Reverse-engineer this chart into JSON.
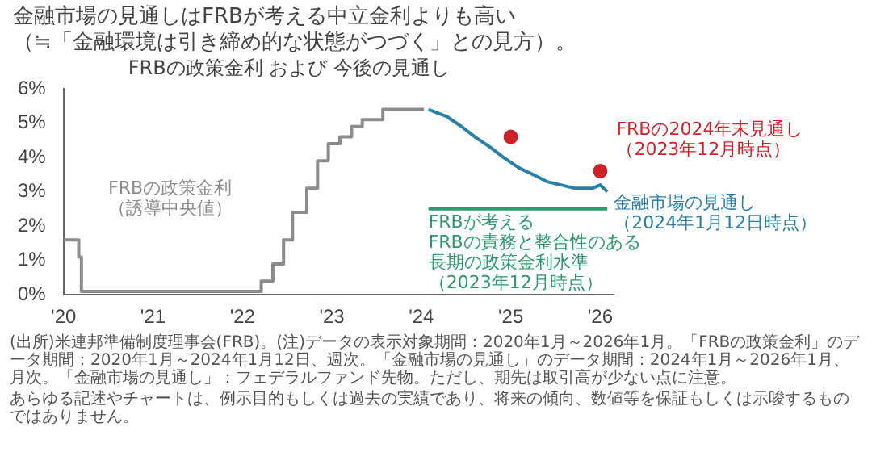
{
  "chart_data": {
    "type": "step",
    "title": "金融市場の見通しはFRBが考える中立金利よりも高い（≒「金融環境は引き締め的な状態がつづく」との見方）。",
    "subtitle": "FRBの政策金利 および 今後の見通し",
    "xlim": [
      2020,
      2026.15
    ],
    "xticks": [
      {
        "value": 2020,
        "label": "'20"
      },
      {
        "value": 2021,
        "label": "'21"
      },
      {
        "value": 2022,
        "label": "'22"
      },
      {
        "value": 2023,
        "label": "'23"
      },
      {
        "value": 2024,
        "label": "'24"
      },
      {
        "value": 2025,
        "label": "'25"
      },
      {
        "value": 2026,
        "label": "'26"
      }
    ],
    "ylim": [
      0,
      6
    ],
    "yticks": [
      {
        "value": 0,
        "label": "0%"
      },
      {
        "value": 1,
        "label": "1%"
      },
      {
        "value": 2,
        "label": "2%"
      },
      {
        "value": 3,
        "label": "3%"
      },
      {
        "value": 4,
        "label": "4%"
      },
      {
        "value": 5,
        "label": "5%"
      },
      {
        "value": 6,
        "label": "6%"
      }
    ],
    "grid": false,
    "legend": false,
    "series": [
      {
        "name": "FRBの政策金利（誘導中央値）",
        "color": "#8c8c8c",
        "x": [
          2020.0,
          2020.17,
          2020.2,
          2022.21,
          2022.34,
          2022.46,
          2022.56,
          2022.72,
          2022.84,
          2022.96,
          2023.09,
          2023.22,
          2023.34,
          2023.57,
          2024.03
        ],
        "values": [
          1.6,
          1.1,
          0.1,
          0.4,
          0.9,
          1.6,
          2.4,
          3.1,
          3.9,
          4.4,
          4.6,
          4.9,
          5.1,
          5.4,
          5.4
        ]
      },
      {
        "name": "金融市場の見通し（2024年1月12日時点）",
        "type": "line",
        "color": "#2a7fa8",
        "x": [
          2024.08,
          2024.28,
          2024.45,
          2024.6,
          2024.77,
          2024.92,
          2025.09,
          2025.25,
          2025.4,
          2025.72,
          2025.91,
          2026.0,
          2026.08
        ],
        "values": [
          5.4,
          5.2,
          4.9,
          4.6,
          4.3,
          4.0,
          3.7,
          3.5,
          3.3,
          3.1,
          3.1,
          3.2,
          3.0
        ]
      },
      {
        "name": "FRBの2024年末見通し（2023年12月時点）",
        "type": "scatter",
        "color": "#d0202a",
        "x": [
          2025.0,
          2026.0
        ],
        "values": [
          4.6,
          3.6
        ]
      },
      {
        "name": "FRBが考えるFRBの責務と整合性のある長期の政策金利水準（2023年12月時点）",
        "type": "line",
        "color": "#2e9a6a",
        "x": [
          2024.08,
          2026.08
        ],
        "values": [
          2.5,
          2.5
        ]
      }
    ],
    "annotations": [
      "(出所)米連邦準備制度理事会(FRB)。(注)データの表示対象期間：2020年1月～2026年1月。「FRBの政策金利」のデータ期間：2020年1月～2024年1月12日、週次。「金融市場の見通し」のデータ期間：2024年1月～2026年1月、月次。「金融市場の見通し」：フェデラルファンド先物。ただし、期先は取引高が少ない点に注意。",
      "あらゆる記述やチャートは、例示目的もしくは過去の実績であり、将来の傾向、数値等を保証もしくは示唆するものではありません。"
    ]
  }
}
